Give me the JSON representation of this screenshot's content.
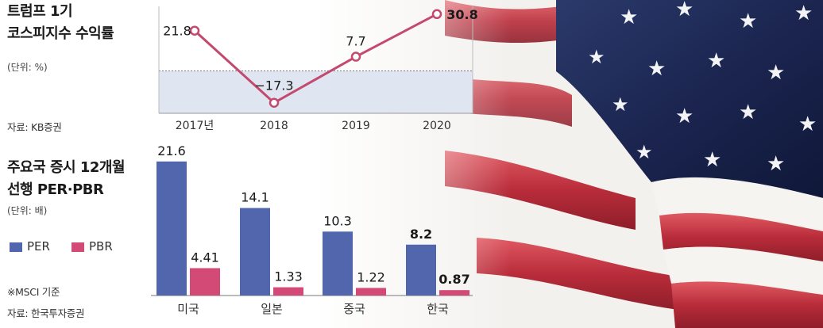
{
  "colors": {
    "line": "#c4496f",
    "per": "#5266ad",
    "pbr": "#d34a77",
    "band": "#dfe6f1",
    "flag_navy": "#1f2b55",
    "flag_red": "#c83a48"
  },
  "chart_data": [
    {
      "type": "line",
      "title": "트럼프 1기\n코스피지수 수익률",
      "title_lines": [
        "트럼프 1기",
        "코스피지수 수익률"
      ],
      "unit": "(단위: %)",
      "source": "자료: KB증권",
      "categories": [
        "2017년",
        "2018",
        "2019",
        "2020"
      ],
      "values": [
        21.8,
        -17.3,
        7.7,
        30.8
      ],
      "labels": [
        "21.8",
        "−17.3",
        "7.7",
        "30.8"
      ],
      "ylim": [
        -23,
        35
      ],
      "grid": false,
      "shaded_band_below_zero": true
    },
    {
      "type": "bar",
      "title": "주요국 증시 12개월\n선행 PER·PBR",
      "title_lines": [
        "주요국 증시 12개월",
        "선행 PER·PBR"
      ],
      "unit": "(단위: 배)",
      "note": "※MSCI 기준",
      "source": "자료: 한국투자증권",
      "categories": [
        "미국",
        "일본",
        "중국",
        "한국"
      ],
      "series": [
        {
          "name": "PER",
          "values": [
            21.6,
            14.1,
            10.3,
            8.2
          ],
          "labels": [
            "21.6",
            "14.1",
            "10.3",
            "8.2"
          ]
        },
        {
          "name": "PBR",
          "values": [
            4.41,
            1.33,
            1.22,
            0.87
          ],
          "labels": [
            "4.41",
            "1.33",
            "1.22",
            "0.87"
          ]
        }
      ],
      "ylim": [
        0,
        24
      ],
      "legend": "left"
    }
  ]
}
